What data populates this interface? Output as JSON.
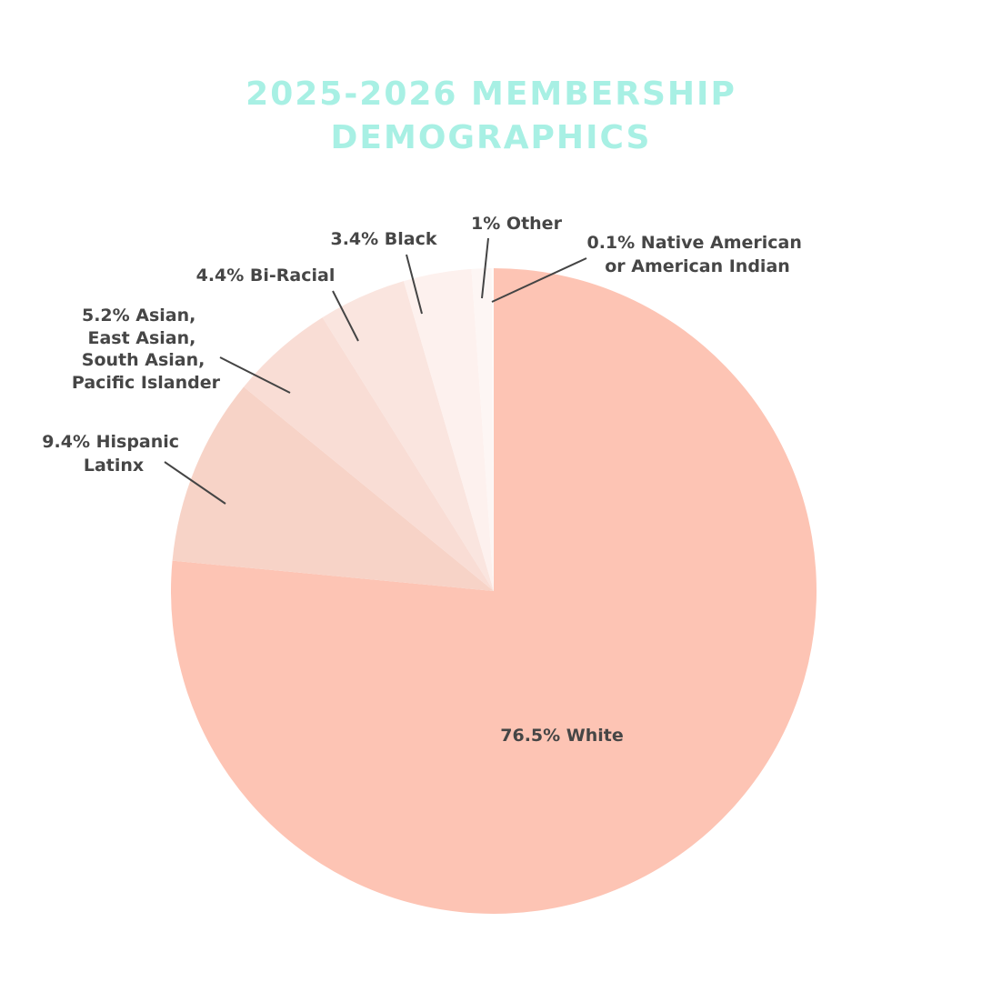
{
  "chart_data": {
    "type": "pie",
    "title_lines": [
      "2025-2026 MEMBERSHIP",
      "DEMOGRAPHICS"
    ],
    "start": "12 o'clock, clockwise",
    "slices": [
      {
        "name": "White",
        "value": 76.5,
        "color": "#fdc4b4",
        "label_lines": [
          "76.5% White"
        ]
      },
      {
        "name": "Hispanic Latinx",
        "value": 9.4,
        "color": "#f7d3c7",
        "label_lines": [
          "9.4% Hispanic",
          "Latinx"
        ]
      },
      {
        "name": "Asian, East Asian, South Asian, Pacific Islander",
        "value": 5.2,
        "color": "#f9ddd5",
        "label_lines": [
          "5.2% Asian,",
          "East Asian,",
          "South Asian,",
          "Pacific Islander"
        ]
      },
      {
        "name": "Bi-Racial",
        "value": 4.4,
        "color": "#fae5df",
        "label_lines": [
          "4.4% Bi-Racial"
        ]
      },
      {
        "name": "Black",
        "value": 3.4,
        "color": "#fdf1ee",
        "label_lines": [
          "3.4% Black"
        ]
      },
      {
        "name": "Other",
        "value": 1,
        "color": "#fdf6f4",
        "label_lines": [
          "1% Other"
        ]
      },
      {
        "name": "Native American or American Indian",
        "value": 0.1,
        "color": "#fefbfa",
        "label_lines": [
          "0.1% Native American",
          "or American Indian"
        ]
      }
    ],
    "title_color": "#a8f0e4",
    "label_color": "#464646"
  }
}
